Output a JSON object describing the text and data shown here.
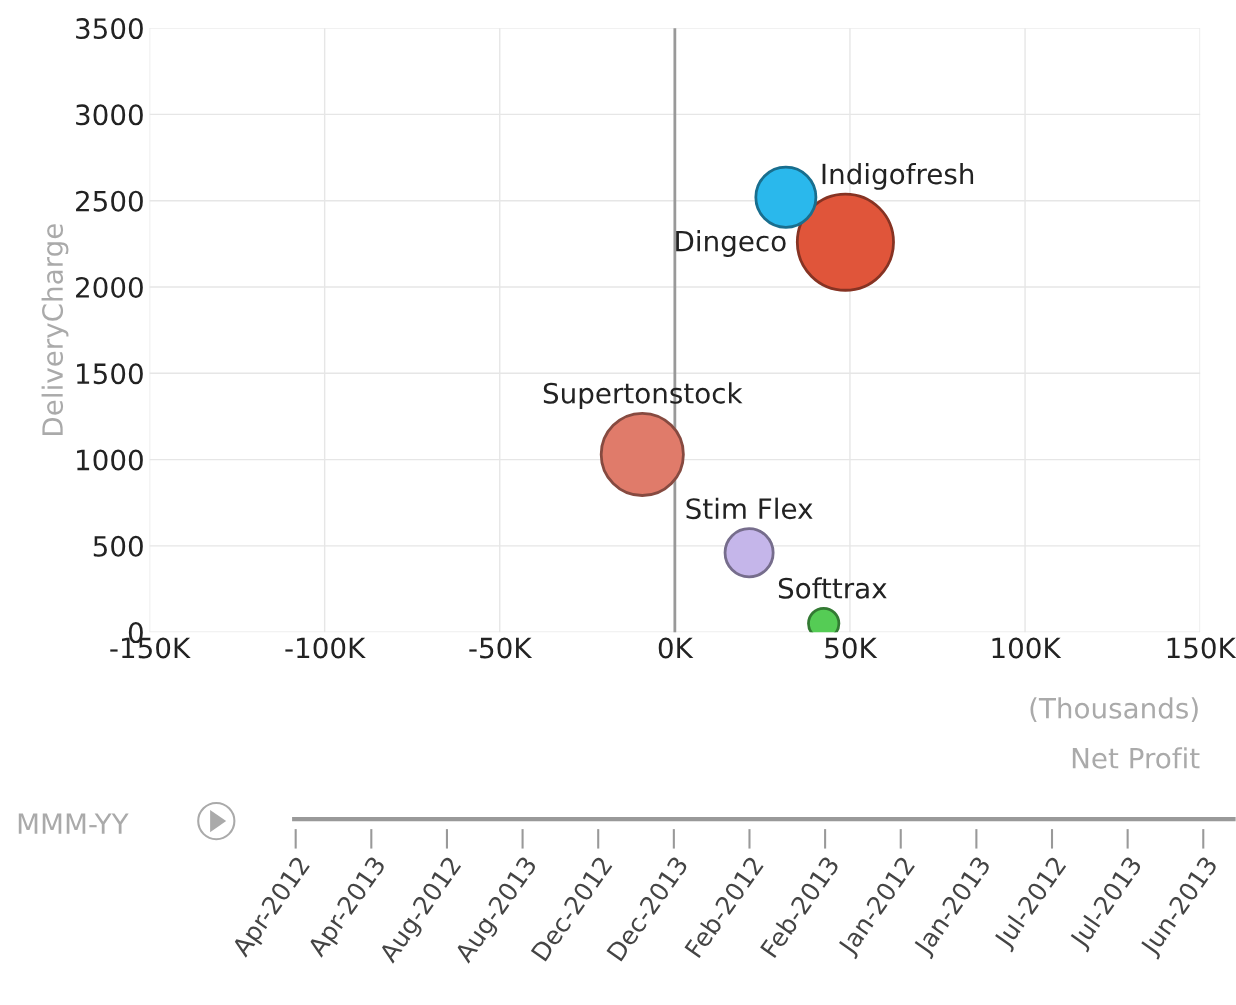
{
  "chart_data": [
    {
      "type": "bubble",
      "xlabel": "Net Profit",
      "ylabel": "DeliveryCharge",
      "annotations": [
        "(Thousands)"
      ],
      "xlim": [
        -150,
        150
      ],
      "xticks": [
        {
          "value": -150,
          "label": "-150K"
        },
        {
          "value": -100,
          "label": "-100K"
        },
        {
          "value": -50,
          "label": "-50K"
        },
        {
          "value": 0,
          "label": "0K"
        },
        {
          "value": 50,
          "label": "50K"
        },
        {
          "value": 100,
          "label": "100K"
        },
        {
          "value": 150,
          "label": "150K"
        }
      ],
      "ylim": [
        0,
        3500
      ],
      "yticks": [
        0,
        500,
        1000,
        1500,
        2000,
        2500,
        3000,
        3500
      ],
      "grid": true,
      "ref_lines": [
        {
          "axis": "x",
          "value": 0,
          "color": "#999999"
        }
      ],
      "series": [
        {
          "name": "Indigofresh",
          "color": "#e0553a",
          "x": [
            48.7
          ],
          "values": [
            2260
          ],
          "sizes": [
            1
          ]
        },
        {
          "name": "Supertonstock",
          "color": "#e07b6a",
          "x": [
            -9.3
          ],
          "values": [
            1030
          ],
          "sizes": [
            0.73
          ]
        },
        {
          "name": "Dingeco",
          "color": "#2ab8ec",
          "x": [
            31.7
          ],
          "values": [
            2520
          ],
          "sizes": [
            0.39
          ]
        },
        {
          "name": "Stim Flex",
          "color": "#c5b6ea",
          "x": [
            21.2
          ],
          "values": [
            460
          ],
          "sizes": [
            0.25
          ]
        },
        {
          "name": "Softtrax",
          "color": "#55cc55",
          "x": [
            42.5
          ],
          "values": [
            50
          ],
          "sizes": [
            0.1
          ]
        }
      ]
    },
    {
      "type": "other",
      "title": "MMM-YY",
      "categories": [
        "Apr-2012",
        "Apr-2013",
        "Aug-2012",
        "Aug-2013",
        "Dec-2012",
        "Dec-2013",
        "Feb-2012",
        "Feb-2013",
        "Jan-2012",
        "Jan-2013",
        "Jul-2012",
        "Jul-2013",
        "Jun-2013"
      ]
    }
  ]
}
